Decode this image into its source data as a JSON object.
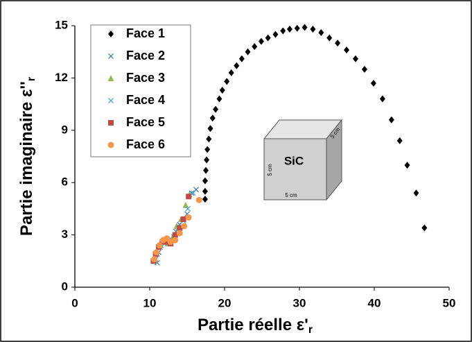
{
  "chart_data": {
    "type": "scatter",
    "xlabel": "Partie réelle ε'",
    "xlabel_sub": "r",
    "ylabel": "Partie imaginaire ε''",
    "ylabel_sub": "r",
    "xlim": [
      0,
      50
    ],
    "xticks": [
      0,
      10,
      20,
      30,
      40,
      50
    ],
    "ylim": [
      0,
      15
    ],
    "yticks": [
      0,
      3,
      6,
      9,
      12,
      15
    ],
    "legend": "upper left",
    "annotations": [
      "SiC",
      "5 cm",
      "5 cm",
      "5 cm"
    ],
    "series": [
      {
        "name": "Face 1",
        "color": "#000000",
        "marker": "diamond",
        "x": [
          17.4,
          17.4,
          17.4,
          17.5,
          17.6,
          17.7,
          17.9,
          18.1,
          18.4,
          18.8,
          19.3,
          19.7,
          20.3,
          20.9,
          21.6,
          22.3,
          23.1,
          24.0,
          24.9,
          25.8,
          26.8,
          27.8,
          28.7,
          29.7,
          30.7,
          31.8,
          32.9,
          34.0,
          35.1,
          36.3,
          37.5,
          38.7,
          39.9,
          41.1,
          42.3,
          43.4,
          44.4,
          45.6,
          46.7
        ],
        "values": [
          5.05,
          5.5,
          6.1,
          6.7,
          7.3,
          7.9,
          8.5,
          9.1,
          9.7,
          10.2,
          10.8,
          11.3,
          11.8,
          12.3,
          12.7,
          13.1,
          13.5,
          13.8,
          14.1,
          14.3,
          14.5,
          14.7,
          14.8,
          14.85,
          14.9,
          14.8,
          14.6,
          14.3,
          14.0,
          13.6,
          13.1,
          12.5,
          11.7,
          10.8,
          9.6,
          8.4,
          7.0,
          5.4,
          3.4
        ]
      },
      {
        "name": "Face 2",
        "color": "#4a7ebb",
        "marker": "x",
        "x": [
          10.8,
          11.0,
          11.2,
          11.5,
          12.0,
          12.5,
          13.0,
          13.5,
          14.0,
          14.5,
          15.0,
          15.6,
          16.2
        ],
        "values": [
          1.6,
          1.4,
          2.0,
          2.4,
          2.6,
          2.5,
          2.7,
          3.2,
          3.6,
          3.9,
          4.2,
          5.4,
          5.6
        ]
      },
      {
        "name": "Face 3",
        "color": "#98b954",
        "marker": "triangle",
        "x": [
          10.6,
          10.9,
          11.3,
          11.8,
          12.4,
          13.0,
          13.6,
          14.2,
          14.8,
          15.3
        ],
        "values": [
          1.5,
          2.0,
          2.4,
          2.6,
          2.5,
          2.8,
          3.5,
          3.9,
          4.7,
          5.3
        ]
      },
      {
        "name": "Face 4",
        "color": "#46aac5",
        "marker": "x",
        "x": [
          10.7,
          11.0,
          11.4,
          12.0,
          12.6,
          13.2,
          13.8,
          14.5,
          15.1,
          15.8
        ],
        "values": [
          1.5,
          1.9,
          2.3,
          2.5,
          2.6,
          2.9,
          3.4,
          3.8,
          4.5,
          5.4
        ]
      },
      {
        "name": "Face 5",
        "color": "#be4b48",
        "marker": "square",
        "x": [
          10.5,
          10.8,
          11.2,
          11.7,
          12.2,
          12.8,
          13.4,
          14.0,
          14.5,
          15.2
        ],
        "values": [
          1.5,
          1.9,
          2.3,
          2.6,
          2.6,
          2.5,
          3.0,
          3.4,
          3.9,
          5.2
        ]
      },
      {
        "name": "Face 6",
        "color": "#f79646",
        "marker": "circle",
        "x": [
          10.6,
          10.9,
          11.3,
          11.8,
          12.3,
          12.8,
          13.4,
          14.0,
          14.6,
          15.2,
          16.6
        ],
        "values": [
          1.6,
          2.0,
          2.4,
          2.7,
          2.8,
          2.6,
          2.7,
          3.1,
          3.5,
          4.0,
          5.0
        ]
      }
    ]
  }
}
